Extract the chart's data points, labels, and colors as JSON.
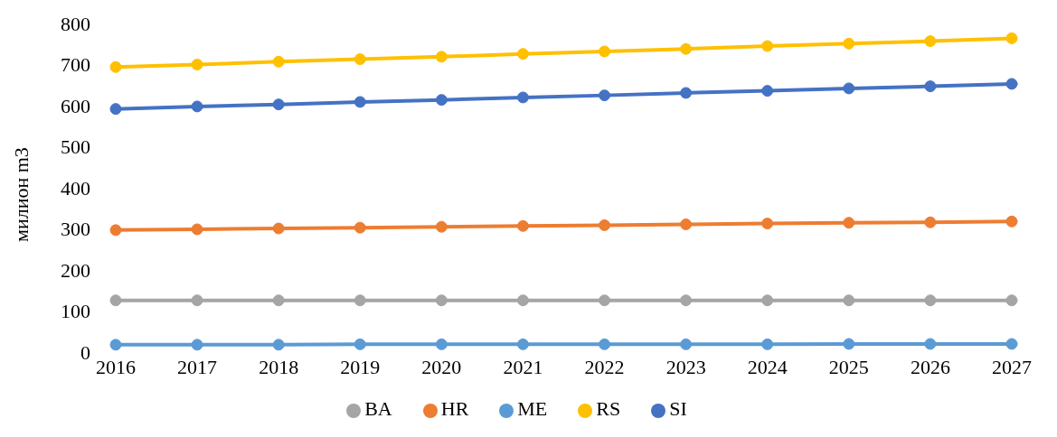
{
  "chart_data": {
    "type": "line",
    "ylabel": "милион m3",
    "categories": [
      "2016",
      "2017",
      "2018",
      "2019",
      "2020",
      "2021",
      "2022",
      "2023",
      "2024",
      "2025",
      "2026",
      "2027"
    ],
    "series": [
      {
        "name": "SI",
        "color": "#4472c4",
        "values": [
          592,
          598,
          603,
          609,
          614,
          620,
          625,
          631,
          636,
          642,
          647,
          653
        ]
      },
      {
        "name": "HR",
        "color": "#ed7d31",
        "values": [
          297,
          299,
          301,
          303,
          305,
          307,
          309,
          311,
          313,
          315,
          316,
          318
        ]
      },
      {
        "name": "BA",
        "color": "#a5a5a5",
        "values": [
          126,
          126,
          126,
          126,
          126,
          126,
          126,
          126,
          126,
          126,
          126,
          126
        ]
      },
      {
        "name": "RS",
        "color": "#ffc000",
        "values": [
          694,
          700,
          707,
          713,
          719,
          726,
          732,
          738,
          745,
          751,
          757,
          764
        ]
      },
      {
        "name": "ME",
        "color": "#5b9bd5",
        "values": [
          18,
          18,
          18,
          19,
          19,
          19,
          19,
          19,
          19,
          20,
          20,
          20
        ]
      }
    ],
    "ylim": [
      0,
      800
    ],
    "yticks": [
      0,
      100,
      200,
      300,
      400,
      500,
      600,
      700,
      800
    ],
    "grid": false,
    "legend": "bottom",
    "marker": "circle",
    "line_style": "solid"
  }
}
